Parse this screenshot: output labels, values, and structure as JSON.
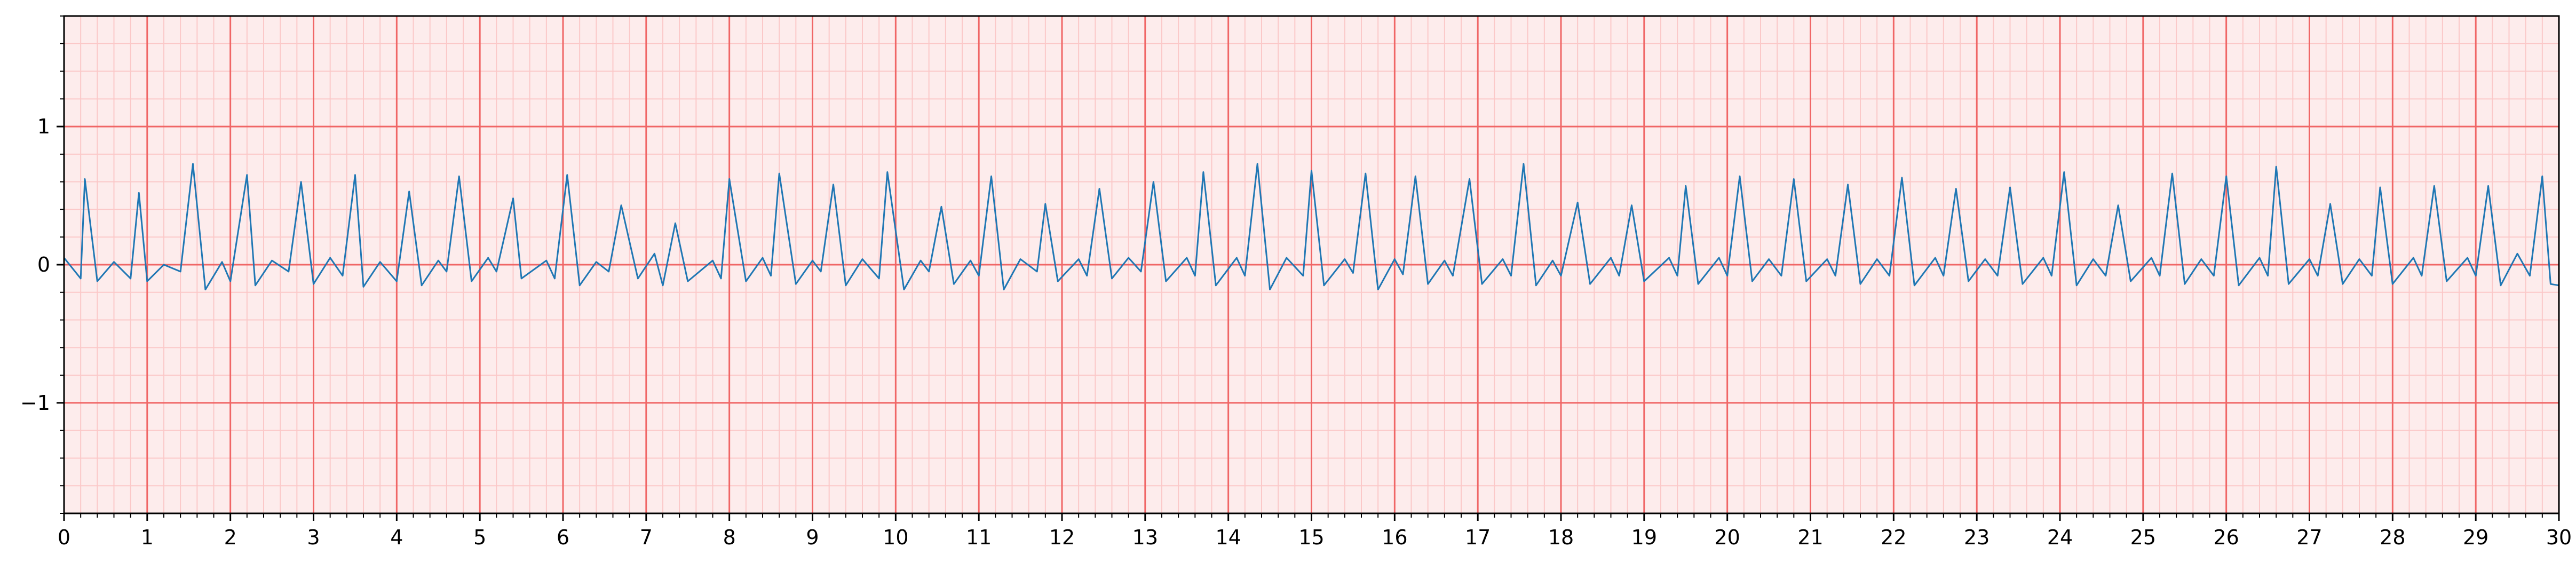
{
  "chart_data": {
    "type": "line",
    "title": "",
    "xlabel": "",
    "ylabel": "",
    "xlim": [
      0,
      30
    ],
    "ylim": [
      -1.8,
      1.8
    ],
    "x_ticks": [
      0,
      1,
      2,
      3,
      4,
      5,
      6,
      7,
      8,
      9,
      10,
      11,
      12,
      13,
      14,
      15,
      16,
      17,
      18,
      19,
      20,
      21,
      22,
      23,
      24,
      25,
      26,
      27,
      28,
      29,
      30
    ],
    "x_tick_labels": [
      "0",
      "1",
      "2",
      "3",
      "4",
      "5",
      "6",
      "7",
      "8",
      "9",
      "10",
      "11",
      "12",
      "13",
      "14",
      "15",
      "16",
      "17",
      "18",
      "19",
      "20",
      "21",
      "22",
      "23",
      "24",
      "25",
      "26",
      "27",
      "28",
      "29",
      "30"
    ],
    "y_ticks": [
      -1,
      0,
      1
    ],
    "y_tick_labels": [
      "−1",
      "0",
      "1"
    ],
    "grid": {
      "major": {
        "x_step": 1,
        "y_step": 1,
        "color": "#f06666"
      },
      "minor": {
        "x_step": 0.2,
        "y_step": 0.2,
        "color": "#fbc8c8"
      },
      "background": "#fdecec"
    },
    "series": [
      {
        "color": "#1f77b4",
        "sample_step": 0.2,
        "points": [
          [
            0.0,
            0.05
          ],
          [
            0.2,
            -0.1
          ],
          [
            0.25,
            0.62
          ],
          [
            0.4,
            -0.12
          ],
          [
            0.6,
            0.02
          ],
          [
            0.8,
            -0.1
          ],
          [
            0.9,
            0.52
          ],
          [
            1.0,
            -0.12
          ],
          [
            1.2,
            0.0
          ],
          [
            1.4,
            -0.05
          ],
          [
            1.55,
            0.73
          ],
          [
            1.7,
            -0.18
          ],
          [
            1.9,
            0.02
          ],
          [
            2.0,
            -0.12
          ],
          [
            2.2,
            0.65
          ],
          [
            2.3,
            -0.15
          ],
          [
            2.5,
            0.03
          ],
          [
            2.7,
            -0.05
          ],
          [
            2.85,
            0.6
          ],
          [
            3.0,
            -0.14
          ],
          [
            3.2,
            0.05
          ],
          [
            3.35,
            -0.08
          ],
          [
            3.5,
            0.65
          ],
          [
            3.6,
            -0.16
          ],
          [
            3.8,
            0.02
          ],
          [
            4.0,
            -0.12
          ],
          [
            4.15,
            0.53
          ],
          [
            4.3,
            -0.15
          ],
          [
            4.5,
            0.03
          ],
          [
            4.6,
            -0.05
          ],
          [
            4.75,
            0.64
          ],
          [
            4.9,
            -0.12
          ],
          [
            5.1,
            0.05
          ],
          [
            5.2,
            -0.05
          ],
          [
            5.4,
            0.48
          ],
          [
            5.5,
            -0.1
          ],
          [
            5.8,
            0.03
          ],
          [
            5.9,
            -0.1
          ],
          [
            6.05,
            0.65
          ],
          [
            6.2,
            -0.15
          ],
          [
            6.4,
            0.02
          ],
          [
            6.55,
            -0.05
          ],
          [
            6.7,
            0.43
          ],
          [
            6.9,
            -0.1
          ],
          [
            7.1,
            0.08
          ],
          [
            7.2,
            -0.15
          ],
          [
            7.35,
            0.3
          ],
          [
            7.5,
            -0.12
          ],
          [
            7.8,
            0.03
          ],
          [
            7.9,
            -0.1
          ],
          [
            8.0,
            0.62
          ],
          [
            8.2,
            -0.12
          ],
          [
            8.4,
            0.05
          ],
          [
            8.5,
            -0.08
          ],
          [
            8.6,
            0.66
          ],
          [
            8.8,
            -0.14
          ],
          [
            9.0,
            0.03
          ],
          [
            9.1,
            -0.05
          ],
          [
            9.25,
            0.58
          ],
          [
            9.4,
            -0.15
          ],
          [
            9.6,
            0.04
          ],
          [
            9.8,
            -0.1
          ],
          [
            9.9,
            0.67
          ],
          [
            10.1,
            -0.18
          ],
          [
            10.3,
            0.03
          ],
          [
            10.4,
            -0.05
          ],
          [
            10.55,
            0.42
          ],
          [
            10.7,
            -0.14
          ],
          [
            10.9,
            0.03
          ],
          [
            11.0,
            -0.08
          ],
          [
            11.15,
            0.64
          ],
          [
            11.3,
            -0.18
          ],
          [
            11.5,
            0.04
          ],
          [
            11.7,
            -0.05
          ],
          [
            11.8,
            0.44
          ],
          [
            11.95,
            -0.12
          ],
          [
            12.2,
            0.04
          ],
          [
            12.3,
            -0.08
          ],
          [
            12.45,
            0.55
          ],
          [
            12.6,
            -0.1
          ],
          [
            12.8,
            0.05
          ],
          [
            12.95,
            -0.05
          ],
          [
            13.1,
            0.6
          ],
          [
            13.25,
            -0.12
          ],
          [
            13.5,
            0.05
          ],
          [
            13.6,
            -0.08
          ],
          [
            13.7,
            0.67
          ],
          [
            13.85,
            -0.15
          ],
          [
            14.1,
            0.05
          ],
          [
            14.2,
            -0.08
          ],
          [
            14.35,
            0.73
          ],
          [
            14.5,
            -0.18
          ],
          [
            14.7,
            0.05
          ],
          [
            14.9,
            -0.08
          ],
          [
            15.0,
            0.68
          ],
          [
            15.15,
            -0.15
          ],
          [
            15.4,
            0.04
          ],
          [
            15.5,
            -0.06
          ],
          [
            15.65,
            0.66
          ],
          [
            15.8,
            -0.18
          ],
          [
            16.0,
            0.04
          ],
          [
            16.1,
            -0.07
          ],
          [
            16.25,
            0.64
          ],
          [
            16.4,
            -0.14
          ],
          [
            16.6,
            0.03
          ],
          [
            16.7,
            -0.08
          ],
          [
            16.9,
            0.62
          ],
          [
            17.05,
            -0.14
          ],
          [
            17.3,
            0.04
          ],
          [
            17.4,
            -0.08
          ],
          [
            17.55,
            0.73
          ],
          [
            17.7,
            -0.15
          ],
          [
            17.9,
            0.03
          ],
          [
            18.0,
            -0.08
          ],
          [
            18.2,
            0.45
          ],
          [
            18.35,
            -0.14
          ],
          [
            18.6,
            0.05
          ],
          [
            18.7,
            -0.08
          ],
          [
            18.85,
            0.43
          ],
          [
            19.0,
            -0.12
          ],
          [
            19.3,
            0.05
          ],
          [
            19.4,
            -0.08
          ],
          [
            19.5,
            0.57
          ],
          [
            19.65,
            -0.14
          ],
          [
            19.9,
            0.05
          ],
          [
            20.0,
            -0.08
          ],
          [
            20.15,
            0.64
          ],
          [
            20.3,
            -0.12
          ],
          [
            20.5,
            0.04
          ],
          [
            20.65,
            -0.08
          ],
          [
            20.8,
            0.62
          ],
          [
            20.95,
            -0.12
          ],
          [
            21.2,
            0.04
          ],
          [
            21.3,
            -0.08
          ],
          [
            21.45,
            0.58
          ],
          [
            21.6,
            -0.14
          ],
          [
            21.8,
            0.04
          ],
          [
            21.95,
            -0.08
          ],
          [
            22.1,
            0.63
          ],
          [
            22.25,
            -0.15
          ],
          [
            22.5,
            0.05
          ],
          [
            22.6,
            -0.08
          ],
          [
            22.75,
            0.55
          ],
          [
            22.9,
            -0.12
          ],
          [
            23.1,
            0.04
          ],
          [
            23.25,
            -0.08
          ],
          [
            23.4,
            0.56
          ],
          [
            23.55,
            -0.14
          ],
          [
            23.8,
            0.05
          ],
          [
            23.9,
            -0.08
          ],
          [
            24.05,
            0.67
          ],
          [
            24.2,
            -0.15
          ],
          [
            24.4,
            0.04
          ],
          [
            24.55,
            -0.08
          ],
          [
            24.7,
            0.43
          ],
          [
            24.85,
            -0.12
          ],
          [
            25.1,
            0.05
          ],
          [
            25.2,
            -0.08
          ],
          [
            25.35,
            0.66
          ],
          [
            25.5,
            -0.14
          ],
          [
            25.7,
            0.04
          ],
          [
            25.85,
            -0.08
          ],
          [
            26.0,
            0.64
          ],
          [
            26.15,
            -0.15
          ],
          [
            26.4,
            0.05
          ],
          [
            26.5,
            -0.08
          ],
          [
            26.6,
            0.71
          ],
          [
            26.75,
            -0.14
          ],
          [
            27.0,
            0.04
          ],
          [
            27.1,
            -0.08
          ],
          [
            27.25,
            0.44
          ],
          [
            27.4,
            -0.14
          ],
          [
            27.6,
            0.04
          ],
          [
            27.75,
            -0.08
          ],
          [
            27.85,
            0.56
          ],
          [
            28.0,
            -0.14
          ],
          [
            28.25,
            0.05
          ],
          [
            28.35,
            -0.08
          ],
          [
            28.5,
            0.57
          ],
          [
            28.65,
            -0.12
          ],
          [
            28.9,
            0.05
          ],
          [
            29.0,
            -0.08
          ],
          [
            29.15,
            0.57
          ],
          [
            29.3,
            -0.15
          ],
          [
            29.5,
            0.08
          ],
          [
            29.65,
            -0.08
          ],
          [
            29.8,
            0.64
          ],
          [
            29.9,
            -0.14
          ],
          [
            30.0,
            -0.15
          ]
        ]
      }
    ]
  }
}
